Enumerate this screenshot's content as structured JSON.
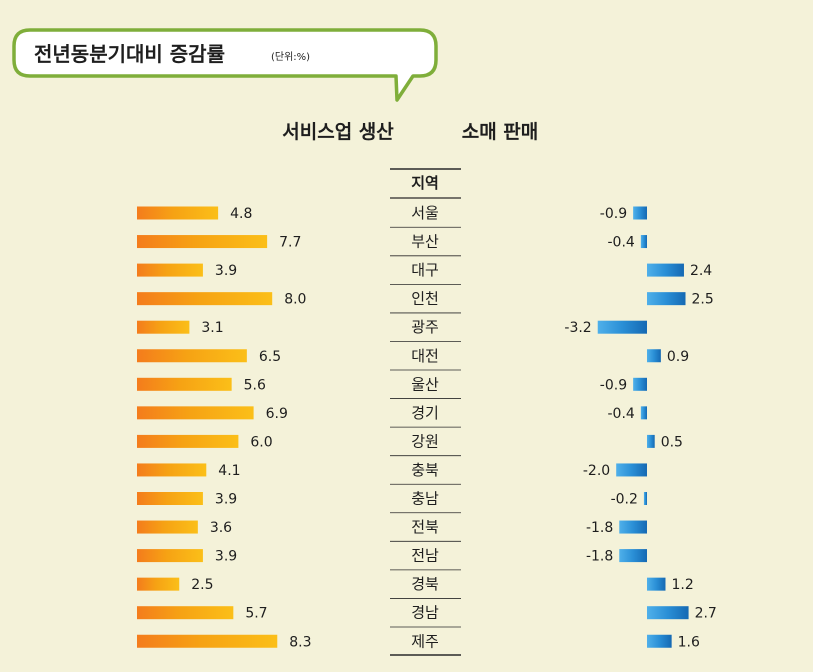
{
  "header": {
    "title": "전년동분기대비 증감률",
    "unit": "(단위:%)"
  },
  "chart_data": {
    "type": "bar",
    "title": "전년동분기대비 증감률",
    "unit": "(단위:%)",
    "category_header": "지역",
    "categories": [
      "서울",
      "부산",
      "대구",
      "인천",
      "광주",
      "대전",
      "울산",
      "경기",
      "강원",
      "충북",
      "충남",
      "전북",
      "전남",
      "경북",
      "경남",
      "제주"
    ],
    "series": [
      {
        "name": "서비스업 생산",
        "values": [
          4.8,
          7.7,
          3.9,
          8.0,
          3.1,
          6.5,
          5.6,
          6.9,
          6.0,
          4.1,
          3.9,
          3.6,
          3.9,
          2.5,
          5.7,
          8.3
        ],
        "labels": [
          "4.8",
          "7.7",
          "3.9",
          "8.0",
          "3.1",
          "6.5",
          "5.6",
          "6.9",
          "6.0",
          "4.1",
          "3.9",
          "3.6",
          "3.9",
          "2.5",
          "5.7",
          "8.3"
        ],
        "color": "#f5a510"
      },
      {
        "name": "소매 판매",
        "values": [
          -0.9,
          -0.4,
          2.4,
          2.5,
          -3.2,
          0.9,
          -0.9,
          -0.4,
          0.5,
          -2.0,
          -0.2,
          -1.8,
          -1.8,
          1.2,
          2.7,
          1.6
        ],
        "labels": [
          "-0.9",
          "-0.4",
          "2.4",
          "2.5",
          "-3.2",
          "0.9",
          "-0.9",
          "-0.4",
          "0.5",
          "-2.0",
          "-0.2",
          "-1.8",
          "-1.8",
          "1.2",
          "2.7",
          "1.6"
        ],
        "color": "#1f86cf"
      }
    ],
    "colors": {
      "background": "#f4f2d9",
      "bubble_border": "#7fae3a",
      "bubble_fill": "#ffffff",
      "divider": "#2a2a2a"
    }
  }
}
